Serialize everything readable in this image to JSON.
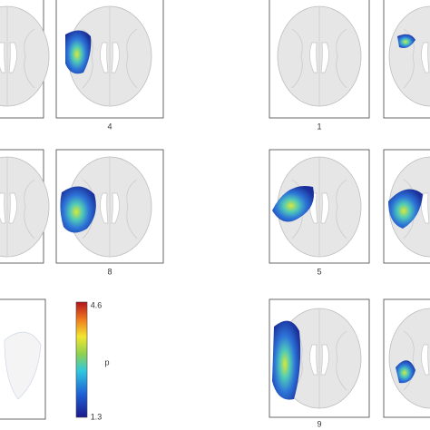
{
  "panels": [
    {
      "label": "4"
    },
    {
      "label": "1"
    },
    {
      "label": "8"
    },
    {
      "label": "5"
    },
    {
      "label": "9"
    }
  ],
  "colorbar": {
    "max": "4.6",
    "min": "1.3",
    "label": "p"
  }
}
